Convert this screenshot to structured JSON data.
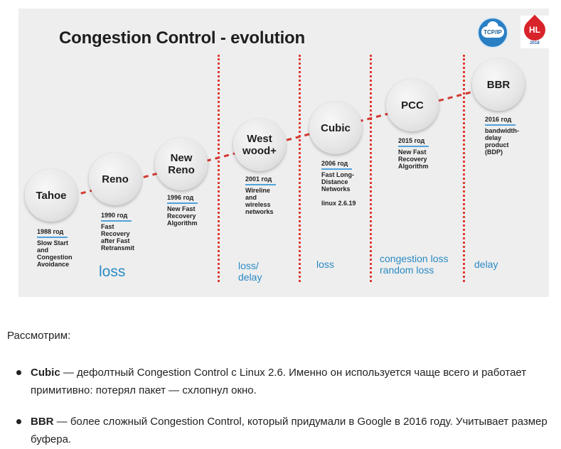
{
  "slide": {
    "title": "Congestion Control - evolution",
    "logos": {
      "tcp": "TCP/IP",
      "hl": "HL",
      "hl_year": "2018"
    },
    "algorithms": [
      {
        "name": "Tahoe",
        "year": "1988 год",
        "description": "Slow Start\nand\nCongestion\nAvoidance"
      },
      {
        "name": "Reno",
        "year": "1990 год",
        "description": "Fast\nRecovery\nafter Fast\nRetransmit"
      },
      {
        "name": "New\nReno",
        "year": "1996 год",
        "description": "New Fast\nRecovery\nAlgorithm"
      },
      {
        "name": "West\nwood+",
        "year": "2001 год",
        "description": "Wireline\nand\nwireless\nnetworks"
      },
      {
        "name": "Cubic",
        "year": "2006 год",
        "description": "Fast Long-\nDistance\nNetworks\n\nlinux 2.6.19"
      },
      {
        "name": "PCC",
        "year": "2015 год",
        "description": "New Fast\nRecovery\nAlgorithm"
      },
      {
        "name": "BBR",
        "year": "2016 год",
        "description": "bandwidth-\ndelay\nproduct\n(BDP)"
      }
    ],
    "causes": [
      "loss",
      "loss/\ndelay",
      "loss",
      "congestion loss\nrandom loss",
      "delay"
    ]
  },
  "article": {
    "intro": "Рассмотрим:",
    "bullets": [
      {
        "term": "Cubic",
        "text": " — дефолтный Congestion Control с Linux 2.6. Именно он используется чаще всего и работает примитивно: потерял пакет — схлопнул окно."
      },
      {
        "term": "BBR",
        "text": " — более сложный Congestion Control, который придумали в Google в 2016 году. Учитывает размер буфера."
      }
    ]
  },
  "colors": {
    "accent_blue": "#2a8ac4",
    "accent_red": "#e03a33",
    "slide_bg": "#eeeeee"
  }
}
